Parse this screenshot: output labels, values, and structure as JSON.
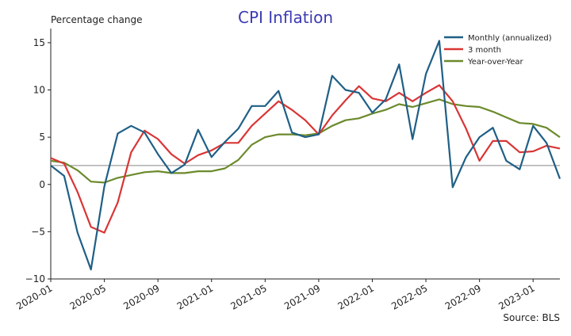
{
  "chart_data": {
    "type": "line",
    "title": "CPI Inflation",
    "ylabel": "Percentage change",
    "xlabel": "",
    "source": "Source: BLS",
    "x": [
      "2020-01",
      "2020-02",
      "2020-03",
      "2020-04",
      "2020-05",
      "2020-06",
      "2020-07",
      "2020-08",
      "2020-09",
      "2020-10",
      "2020-11",
      "2020-12",
      "2021-01",
      "2021-02",
      "2021-03",
      "2021-04",
      "2021-05",
      "2021-06",
      "2021-07",
      "2021-08",
      "2021-09",
      "2021-10",
      "2021-11",
      "2021-12",
      "2022-01",
      "2022-02",
      "2022-03",
      "2022-04",
      "2022-05",
      "2022-06",
      "2022-07",
      "2022-08",
      "2022-09",
      "2022-10",
      "2022-11",
      "2022-12",
      "2023-01",
      "2023-02",
      "2023-03"
    ],
    "xticks": [
      "2020-01",
      "2020-05",
      "2020-09",
      "2021-01",
      "2021-05",
      "2021-09",
      "2022-01",
      "2022-05",
      "2022-09",
      "2023-01"
    ],
    "ylim": [
      -10,
      16.5
    ],
    "yticks": [
      -10,
      -5,
      0,
      5,
      10,
      15
    ],
    "reference_line": 2,
    "legend_position": "top-right",
    "series": [
      {
        "name": "Monthly (annualized)",
        "color": "#1f5f86",
        "values": [
          2.0,
          0.9,
          -5.1,
          -9.0,
          -0.2,
          5.4,
          6.2,
          5.5,
          3.2,
          1.2,
          2.1,
          5.8,
          2.9,
          4.5,
          5.9,
          8.3,
          8.3,
          9.9,
          5.5,
          5.0,
          5.3,
          11.5,
          10.0,
          9.7,
          7.6,
          9.0,
          12.7,
          4.8,
          11.7,
          15.2,
          -0.3,
          2.9,
          5.0,
          6.0,
          2.5,
          1.6,
          6.2,
          4.4,
          0.6
        ]
      },
      {
        "name": "3 month",
        "color": "#d93535",
        "values": [
          2.8,
          2.2,
          -0.8,
          -4.5,
          -5.1,
          -1.9,
          3.4,
          5.7,
          4.8,
          3.2,
          2.2,
          3.1,
          3.6,
          4.4,
          4.4,
          6.2,
          7.5,
          8.8,
          7.9,
          6.8,
          5.3,
          7.3,
          8.9,
          10.4,
          9.1,
          8.8,
          9.7,
          8.8,
          9.7,
          10.5,
          8.8,
          5.9,
          2.5,
          4.6,
          4.6,
          3.4,
          3.5,
          4.1,
          3.8
        ]
      },
      {
        "name": "Year-over-Year",
        "color": "#6b8a2b",
        "values": [
          2.5,
          2.3,
          1.5,
          0.3,
          0.2,
          0.7,
          1.0,
          1.3,
          1.4,
          1.2,
          1.2,
          1.4,
          1.4,
          1.7,
          2.6,
          4.2,
          5.0,
          5.3,
          5.3,
          5.2,
          5.4,
          6.2,
          6.8,
          7.0,
          7.5,
          7.9,
          8.5,
          8.2,
          8.6,
          9.0,
          8.5,
          8.3,
          8.2,
          7.7,
          7.1,
          6.5,
          6.4,
          6.0,
          5.0
        ]
      }
    ]
  }
}
